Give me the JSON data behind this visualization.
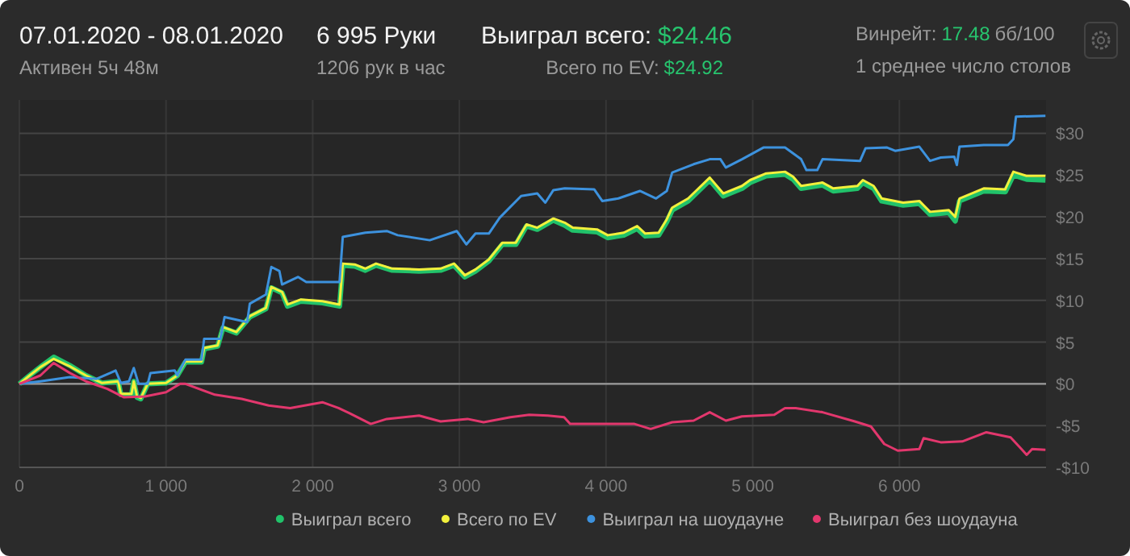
{
  "chart_data": {
    "type": "line",
    "title": "07.01.2020 - 08.01.2020",
    "subtitle": "Активен 5ч 48м",
    "annotations": [
      "6 995 Руки",
      "1206 рук в час",
      "Выиграл всего:",
      "$24.46",
      "Всего по EV:",
      "$24.92",
      "Винрейт:",
      "17.48",
      "бб/100",
      "1 среднее число столов"
    ],
    "xlim": [
      0,
      7000
    ],
    "xticks": [
      0,
      {
        "value": 1000,
        "label": "1 000"
      },
      {
        "value": 2000,
        "label": "2 000"
      },
      {
        "value": 3000,
        "label": "3 000"
      },
      {
        "value": 4000,
        "label": "4 000"
      },
      {
        "value": 5000,
        "label": "5 000"
      },
      {
        "value": 6000,
        "label": "6 000"
      }
    ],
    "ylim": [
      -10,
      34
    ],
    "yticks": [
      {
        "value": -10,
        "label": "-$10"
      },
      {
        "value": -5,
        "label": "-$5"
      },
      {
        "value": 0,
        "label": "$0"
      },
      {
        "value": 5,
        "label": "$5"
      },
      {
        "value": 10,
        "label": "$10"
      },
      {
        "value": 15,
        "label": "$15"
      },
      {
        "value": 20,
        "label": "$20"
      },
      {
        "value": 25,
        "label": "$25"
      },
      {
        "value": 30,
        "label": "$30"
      }
    ],
    "grid": true,
    "legend": "bottom right",
    "line_style": "solid",
    "marker": "none",
    "ref_lines": [
      {
        "axis": "y",
        "value": 0,
        "color": "#9a9a9a"
      }
    ],
    "series": [
      {
        "name": "Выиграл всего",
        "color": "#21c26a",
        "x": [
          0,
          70,
          143,
          234,
          344,
          454,
          564,
          674,
          692,
          765,
          780,
          802,
          828,
          875,
          1000,
          1077,
          1132,
          1242,
          1260,
          1352,
          1388,
          1480,
          1571,
          1681,
          1718,
          1791,
          1828,
          1920,
          2066,
          2183,
          2205,
          2286,
          2359,
          2432,
          2542,
          2725,
          2872,
          2963,
          3037,
          3110,
          3201,
          3293,
          3385,
          3458,
          3531,
          3641,
          3718,
          3773,
          3938,
          4011,
          4121,
          4212,
          4267,
          4359,
          4414,
          4451,
          4560,
          4707,
          4799,
          4927,
          4982,
          5092,
          5220,
          5275,
          5330,
          5476,
          5549,
          5714,
          5751,
          5824,
          5879,
          6026,
          6136,
          6209,
          6337,
          6381,
          6410,
          6575,
          6722,
          6777,
          6868,
          6996
        ],
        "values": [
          0,
          1,
          2,
          3.2,
          2.2,
          1,
          0.1,
          0.3,
          -1.3,
          -1.3,
          0.3,
          -1.6,
          -1.8,
          0,
          0.1,
          1,
          2.6,
          2.6,
          4.2,
          4.5,
          6.7,
          6.1,
          8,
          9,
          11.5,
          10.9,
          9.3,
          9.9,
          9.7,
          9.3,
          14.2,
          14.1,
          13.6,
          14.2,
          13.6,
          13.5,
          13.6,
          14.2,
          12.8,
          13.5,
          14.7,
          16.7,
          16.7,
          18.9,
          18.5,
          19.6,
          19,
          18.4,
          18.2,
          17.5,
          17.8,
          18.6,
          17.7,
          17.8,
          19.4,
          20.8,
          21.9,
          24.4,
          22.5,
          23.4,
          24.1,
          24.9,
          25.1,
          24.5,
          23.4,
          23.8,
          23.1,
          23.4,
          24.1,
          23.4,
          21.9,
          21.4,
          21.6,
          20.3,
          20.5,
          19.5,
          21.9,
          23.1,
          23,
          25,
          24.5,
          24.4
        ]
      },
      {
        "name": "Всего по EV",
        "color": "#f2f03c",
        "x": [
          0,
          70,
          143,
          234,
          344,
          454,
          564,
          674,
          692,
          765,
          780,
          802,
          828,
          875,
          1000,
          1077,
          1132,
          1242,
          1260,
          1352,
          1388,
          1480,
          1571,
          1681,
          1718,
          1791,
          1828,
          1920,
          2066,
          2183,
          2205,
          2286,
          2359,
          2432,
          2542,
          2725,
          2872,
          2963,
          3037,
          3110,
          3201,
          3293,
          3385,
          3458,
          3531,
          3641,
          3718,
          3773,
          3938,
          4011,
          4121,
          4212,
          4267,
          4359,
          4414,
          4451,
          4560,
          4707,
          4799,
          4927,
          4982,
          5092,
          5220,
          5275,
          5330,
          5476,
          5549,
          5714,
          5751,
          5824,
          5879,
          6026,
          6136,
          6209,
          6337,
          6381,
          6410,
          6575,
          6722,
          6777,
          6868,
          6996
        ],
        "values": [
          0,
          1,
          2,
          3,
          2.1,
          1,
          0.1,
          0.3,
          -1.2,
          -1.2,
          0.3,
          -1.5,
          -1.7,
          0,
          0.1,
          1,
          2.7,
          2.7,
          4.3,
          4.6,
          6.8,
          6.2,
          8.1,
          9.1,
          11.6,
          11,
          9.5,
          10.1,
          9.9,
          9.5,
          14.4,
          14.3,
          13.8,
          14.4,
          13.8,
          13.7,
          13.8,
          14.4,
          13,
          13.7,
          14.9,
          16.9,
          16.9,
          19.1,
          18.7,
          19.8,
          19.3,
          18.7,
          18.5,
          17.8,
          18.1,
          18.9,
          18,
          18.1,
          19.7,
          21.1,
          22.2,
          24.7,
          22.8,
          23.7,
          24.4,
          25.2,
          25.4,
          24.8,
          23.7,
          24.1,
          23.4,
          23.7,
          24.4,
          23.7,
          22.2,
          21.7,
          21.9,
          20.6,
          20.8,
          20,
          22.2,
          23.4,
          23.3,
          25.4,
          24.9,
          24.9
        ]
      },
      {
        "name": "Выиграл на шоудауне",
        "color": "#3d92de",
        "x": [
          0,
          143,
          344,
          527,
          619,
          656,
          692,
          747,
          780,
          813,
          875,
          894,
          1059,
          1077,
          1132,
          1242,
          1260,
          1370,
          1399,
          1553,
          1571,
          1681,
          1718,
          1773,
          1791,
          1901,
          1956,
          2183,
          2205,
          2359,
          2505,
          2579,
          2798,
          2982,
          3048,
          3110,
          3201,
          3275,
          3421,
          3531,
          3586,
          3641,
          3718,
          3919,
          3974,
          4084,
          4231,
          4341,
          4414,
          4451,
          4597,
          4707,
          4780,
          4817,
          4927,
          5073,
          5220,
          5330,
          5366,
          5440,
          5476,
          5732,
          5769,
          5916,
          5971,
          6136,
          6209,
          6282,
          6374,
          6392,
          6410,
          6575,
          6740,
          6777,
          6795,
          6996
        ],
        "values": [
          0,
          0.3,
          0.8,
          0.6,
          1.3,
          1.6,
          0.1,
          0.3,
          1.9,
          0,
          0,
          1.3,
          1.6,
          1,
          2.9,
          2.9,
          5.4,
          5.4,
          8,
          7.4,
          9.6,
          10.7,
          14,
          13.5,
          11.9,
          12.8,
          12.2,
          12.2,
          17.6,
          18.1,
          18.3,
          17.8,
          17.2,
          18.3,
          16.7,
          18,
          18,
          19.9,
          22.5,
          22.8,
          21.7,
          23.2,
          23.4,
          23.3,
          21.9,
          22.2,
          23.1,
          22.2,
          23.1,
          25.3,
          26.3,
          26.9,
          26.9,
          25.9,
          26.9,
          28.3,
          28.3,
          26.9,
          25.6,
          25.6,
          26.9,
          26.7,
          28.2,
          28.3,
          27.9,
          28.4,
          26.7,
          27.1,
          27.2,
          26.2,
          28.4,
          28.6,
          28.6,
          29.3,
          32,
          32.1
        ]
      },
      {
        "name": "Выиграл без шоудауна",
        "color": "#e2376d",
        "x": [
          0,
          143,
          234,
          344,
          454,
          600,
          711,
          857,
          1000,
          1095,
          1132,
          1333,
          1516,
          1700,
          1846,
          2066,
          2176,
          2249,
          2396,
          2505,
          2725,
          2872,
          3055,
          3165,
          3348,
          3476,
          3604,
          3714,
          3755,
          3938,
          4194,
          4304,
          4451,
          4597,
          4707,
          4817,
          4927,
          5147,
          5220,
          5293,
          5476,
          5696,
          5806,
          5897,
          5989,
          6136,
          6165,
          6282,
          6429,
          6593,
          6758,
          6832,
          6868,
          6905,
          6996
        ],
        "values": [
          0,
          1,
          2.5,
          1.3,
          0.3,
          -0.6,
          -1.6,
          -1.5,
          -1,
          0,
          0,
          -1.3,
          -1.8,
          -2.6,
          -2.9,
          -2.2,
          -2.9,
          -3.5,
          -4.8,
          -4.2,
          -3.8,
          -4.5,
          -4.2,
          -4.6,
          -4,
          -3.7,
          -3.8,
          -4,
          -4.8,
          -4.8,
          -4.8,
          -5.4,
          -4.6,
          -4.4,
          -3.4,
          -4.4,
          -3.9,
          -3.7,
          -2.9,
          -2.9,
          -3.4,
          -4.5,
          -5.1,
          -7.2,
          -8,
          -7.8,
          -6.5,
          -7,
          -6.9,
          -5.8,
          -6.4,
          -7.8,
          -8.5,
          -7.8,
          -7.9
        ]
      }
    ]
  }
}
